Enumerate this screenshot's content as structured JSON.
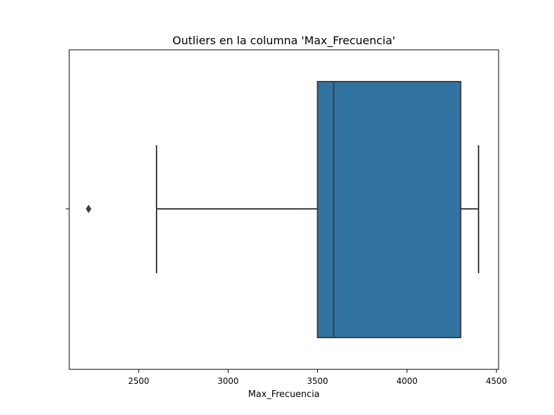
{
  "chart_data": {
    "type": "boxplot",
    "title": "Outliers en la columna 'Max_Frecuencia'",
    "xlabel": "Max_Frecuencia",
    "ylabel": "",
    "xlim": [
      2112,
      4512
    ],
    "xticks": [
      2500,
      3000,
      3500,
      4000,
      4500
    ],
    "xtick_labels": [
      "2500",
      "3000",
      "3500",
      "4000",
      "4500"
    ],
    "grid": false,
    "box": {
      "whisker_low": 2600,
      "q1": 3500,
      "median": 3590,
      "q3": 4300,
      "whisker_high": 4400,
      "outliers": [
        2220
      ]
    },
    "colors": {
      "box_fill": "#3274a1",
      "line": "#3f3f3f"
    }
  }
}
